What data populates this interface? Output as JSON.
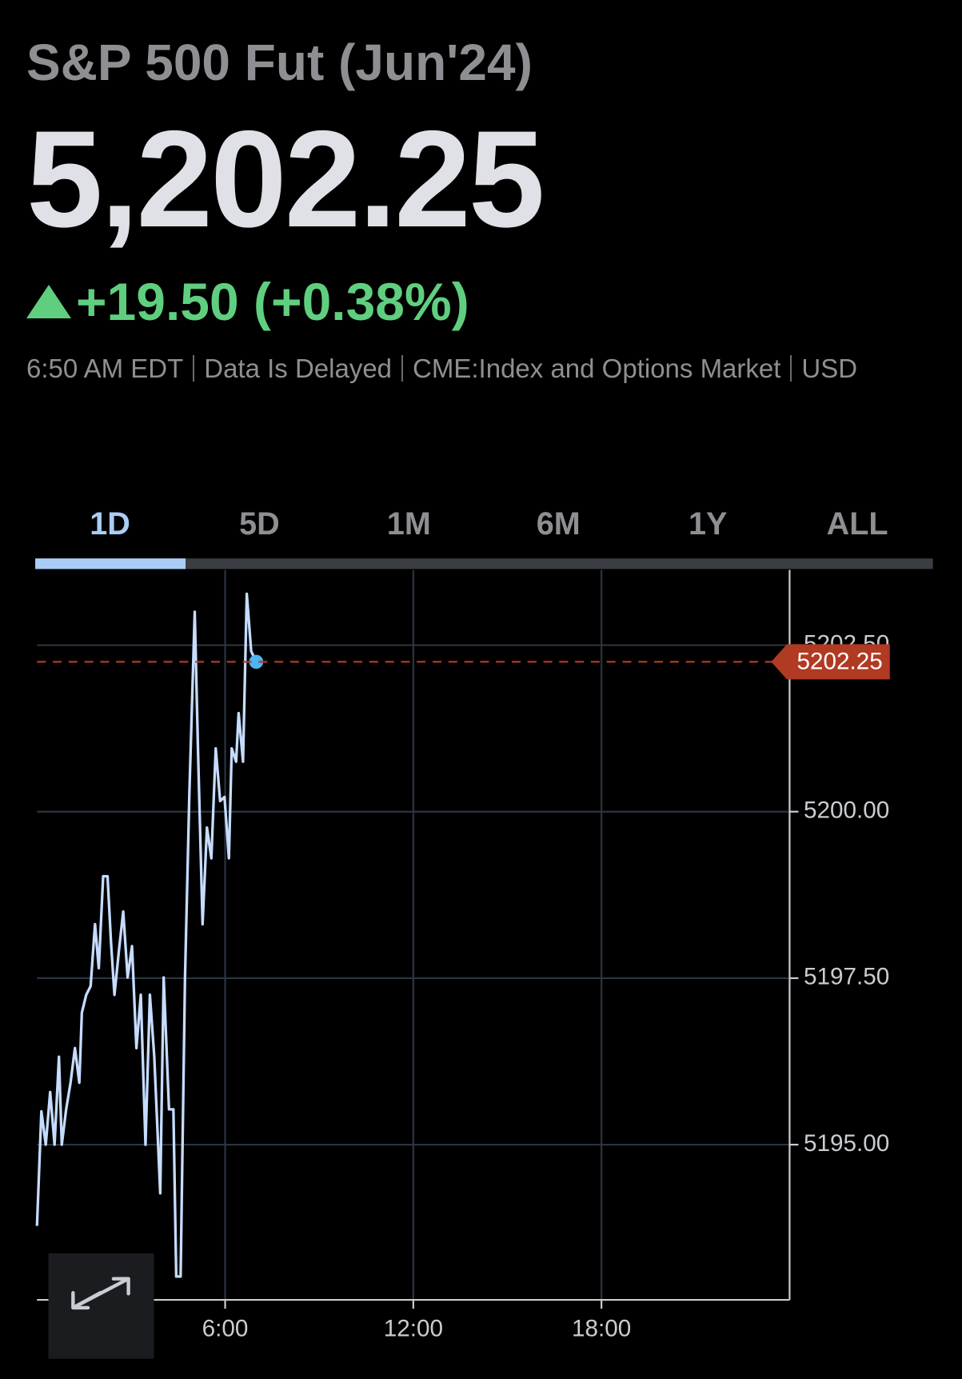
{
  "header": {
    "title": "S&P 500 Fut (Jun'24)",
    "price": "5,202.25",
    "change": "+19.50 (+0.38%)",
    "meta": [
      "6:50 AM EDT",
      "Data Is Delayed",
      "CME:Index and Options Market",
      "USD"
    ]
  },
  "tabs": [
    "1D",
    "5D",
    "1M",
    "6M",
    "1Y",
    "ALL"
  ],
  "chart_data": {
    "type": "line",
    "x": [
      0,
      0.14,
      0.28,
      0.42,
      0.56,
      0.7,
      0.79,
      0.93,
      1.07,
      1.21,
      1.35,
      1.43,
      1.57,
      1.71,
      1.85,
      1.97,
      2.11,
      2.25,
      2.36,
      2.47,
      2.61,
      2.75,
      2.89,
      3.03,
      3.17,
      3.31,
      3.46,
      3.6,
      3.74,
      3.93,
      4.04,
      4.21,
      4.35,
      4.44,
      4.58,
      4.72,
      4.86,
      5.03,
      5.14,
      5.28,
      5.42,
      5.56,
      5.7,
      5.84,
      5.98,
      6.12,
      6.21,
      6.35,
      6.43,
      6.57,
      6.69,
      6.83,
      6.99
    ],
    "series": [
      {
        "color": "#c6dcff",
        "values": [
          5193.78,
          5195.5,
          5195.0,
          5195.79,
          5195.0,
          5196.32,
          5195.0,
          5195.53,
          5195.93,
          5196.45,
          5195.93,
          5196.98,
          5197.25,
          5197.38,
          5198.31,
          5197.65,
          5199.03,
          5199.03,
          5198.04,
          5197.25,
          5197.9,
          5198.5,
          5197.51,
          5197.98,
          5196.45,
          5197.25,
          5195.0,
          5197.25,
          5196.32,
          5194.27,
          5197.51,
          5195.53,
          5195.53,
          5193.02,
          5193.02,
          5197.51,
          5200.29,
          5203.0,
          5200.82,
          5198.31,
          5199.76,
          5199.3,
          5200.95,
          5200.16,
          5200.22,
          5199.3,
          5200.95,
          5200.75,
          5201.48,
          5200.75,
          5203.27,
          5202.41,
          5202.25
        ]
      }
    ],
    "xlim": [
      0,
      24
    ],
    "xticks": [
      {
        "value": 6,
        "label": "6:00"
      },
      {
        "value": 12,
        "label": "12:00"
      },
      {
        "value": 18,
        "label": "18:00"
      }
    ],
    "ylim": [
      5192.67,
      5203.63
    ],
    "yticks": [
      {
        "value": 5195,
        "label": "5195.00"
      },
      {
        "value": 5197.5,
        "label": "5197.50"
      },
      {
        "value": 5200,
        "label": "5200.00"
      },
      {
        "value": 5202.5,
        "label": "5202.50"
      }
    ],
    "grid": true,
    "last_value": 5202.25,
    "last_value_color": "#b13a22"
  }
}
